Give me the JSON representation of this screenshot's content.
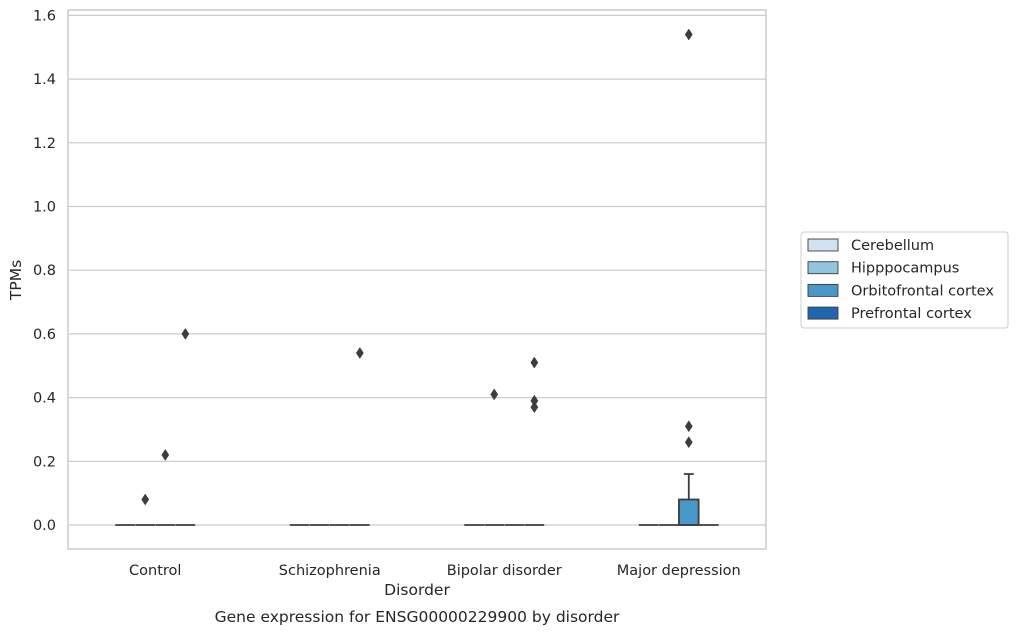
{
  "chart_data": {
    "type": "box",
    "title": "",
    "caption": "Gene expression for ENSG00000229900 by disorder",
    "xlabel": "Disorder",
    "ylabel": "TPMs",
    "categories": [
      "Control",
      "Schizophrenia",
      "Bipolar disorder",
      "Major depression"
    ],
    "y_ticks": [
      "0.0",
      "0.2",
      "0.4",
      "0.6",
      "0.8",
      "1.0",
      "1.2",
      "1.4",
      "1.6"
    ],
    "ylim": [
      -0.075,
      1.62
    ],
    "grid": true,
    "legend_position": "right",
    "series": [
      {
        "name": "Cerebellum",
        "color": "#cfe1f2",
        "boxes": [
          {
            "category": "Control",
            "q1": 0,
            "median": 0,
            "q3": 0,
            "whisker_low": 0,
            "whisker_high": 0,
            "outliers": []
          },
          {
            "category": "Schizophrenia",
            "q1": 0,
            "median": 0,
            "q3": 0,
            "whisker_low": 0,
            "whisker_high": 0,
            "outliers": []
          },
          {
            "category": "Bipolar disorder",
            "q1": 0,
            "median": 0,
            "q3": 0,
            "whisker_low": 0,
            "whisker_high": 0,
            "outliers": []
          },
          {
            "category": "Major depression",
            "q1": 0,
            "median": 0,
            "q3": 0,
            "whisker_low": 0,
            "whisker_high": 0,
            "outliers": []
          }
        ]
      },
      {
        "name": "Hipppocampus",
        "color": "#93c4de",
        "boxes": [
          {
            "category": "Control",
            "q1": 0,
            "median": 0,
            "q3": 0,
            "whisker_low": 0,
            "whisker_high": 0,
            "outliers": [
              0.08
            ]
          },
          {
            "category": "Schizophrenia",
            "q1": 0,
            "median": 0,
            "q3": 0,
            "whisker_low": 0,
            "whisker_high": 0,
            "outliers": []
          },
          {
            "category": "Bipolar disorder",
            "q1": 0,
            "median": 0,
            "q3": 0,
            "whisker_low": 0,
            "whisker_high": 0,
            "outliers": [
              0.41
            ]
          },
          {
            "category": "Major depression",
            "q1": 0,
            "median": 0,
            "q3": 0,
            "whisker_low": 0,
            "whisker_high": 0,
            "outliers": []
          }
        ]
      },
      {
        "name": "Orbitofrontal cortex",
        "color": "#4a98c9",
        "boxes": [
          {
            "category": "Control",
            "q1": 0,
            "median": 0,
            "q3": 0,
            "whisker_low": 0,
            "whisker_high": 0,
            "outliers": [
              0.22
            ]
          },
          {
            "category": "Schizophrenia",
            "q1": 0,
            "median": 0,
            "q3": 0,
            "whisker_low": 0,
            "whisker_high": 0,
            "outliers": []
          },
          {
            "category": "Bipolar disorder",
            "q1": 0,
            "median": 0,
            "q3": 0,
            "whisker_low": 0,
            "whisker_high": 0,
            "outliers": []
          },
          {
            "category": "Major depression",
            "q1": 0,
            "median": 0,
            "q3": 0.08,
            "whisker_low": 0,
            "whisker_high": 0.16,
            "outliers": [
              0.26,
              0.31,
              1.54
            ]
          }
        ]
      },
      {
        "name": "Prefrontal cortex",
        "color": "#2166ac",
        "boxes": [
          {
            "category": "Control",
            "q1": 0,
            "median": 0,
            "q3": 0,
            "whisker_low": 0,
            "whisker_high": 0,
            "outliers": [
              0.6
            ]
          },
          {
            "category": "Schizophrenia",
            "q1": 0,
            "median": 0,
            "q3": 0,
            "whisker_low": 0,
            "whisker_high": 0,
            "outliers": [
              0.54
            ]
          },
          {
            "category": "Bipolar disorder",
            "q1": 0,
            "median": 0,
            "q3": 0,
            "whisker_low": 0,
            "whisker_high": 0,
            "outliers": [
              0.51,
              0.39,
              0.37
            ]
          },
          {
            "category": "Major depression",
            "q1": 0,
            "median": 0,
            "q3": 0,
            "whisker_low": 0,
            "whisker_high": 0,
            "outliers": []
          }
        ]
      }
    ]
  },
  "colors": {
    "grid": "#cccccc",
    "frame": "#cccccc",
    "box_edge": "#3d3d3d",
    "text": "#262626"
  }
}
